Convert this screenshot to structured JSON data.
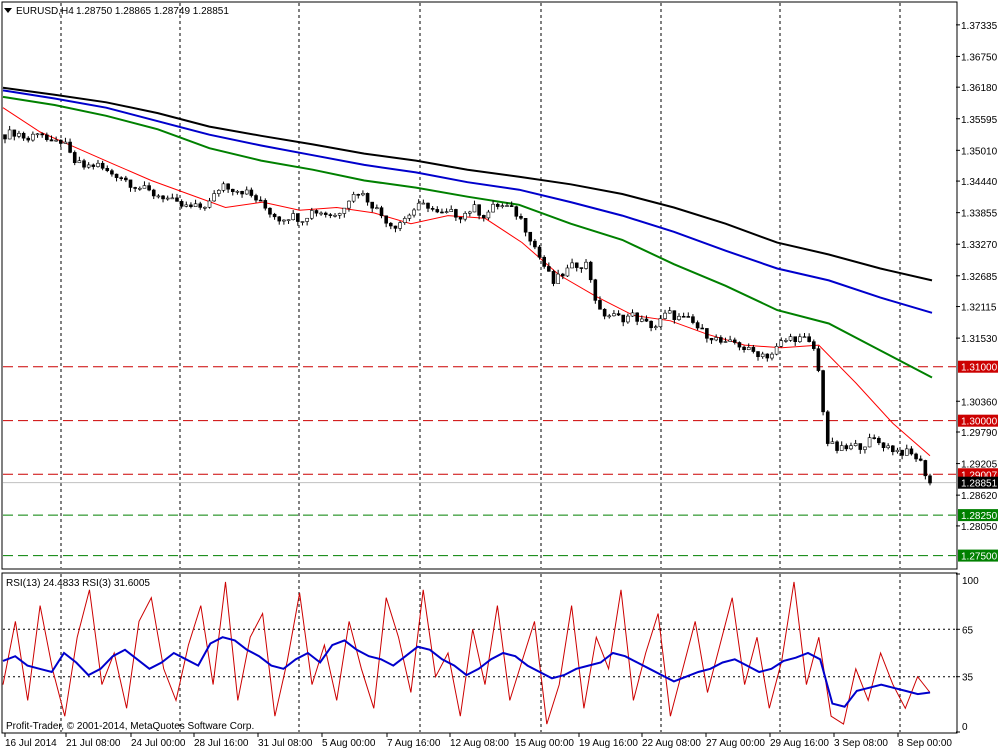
{
  "header": {
    "symbol_label": "EURUSD,H4",
    "ohlc": "1.28750 1.28865 1.28749 1.28851",
    "menu_icon": "triangle-down-icon"
  },
  "copyright": "Profit-Trader, © 2001-2014, MetaQuotes Software Corp.",
  "rsi_label": "RSI(13) 24.4833 RSI(3) 31.6005",
  "price_axis_ticks": [
    "1.37335",
    "1.36750",
    "1.36180",
    "1.35595",
    "1.35010",
    "1.34440",
    "1.33855",
    "1.33270",
    "1.32685",
    "1.32115",
    "1.31530",
    "1.30360",
    "1.29790",
    "1.29205",
    "1.28620",
    "1.28050"
  ],
  "price_levels": [
    {
      "label": "1.31000",
      "value": 1.31,
      "color": "#cc0000",
      "style": "dashed"
    },
    {
      "label": "1.30000",
      "value": 1.3,
      "color": "#cc0000",
      "style": "dashed"
    },
    {
      "label": "1.29007",
      "value": 1.29007,
      "color": "#cc0000",
      "style": "dashed"
    },
    {
      "label": "1.28851",
      "value": 1.28851,
      "color": "#000000",
      "style": "solid-current"
    },
    {
      "label": "1.28250",
      "value": 1.2825,
      "color": "#008000",
      "style": "dashed"
    },
    {
      "label": "1.27500",
      "value": 1.275,
      "color": "#008000",
      "style": "dashed"
    }
  ],
  "rsi_ticks": [
    "100",
    "65",
    "35",
    "0"
  ],
  "time_labels": [
    "16 Jul 2014",
    "21 Jul 08:00",
    "24 Jul 00:00",
    "28 Jul 16:00",
    "31 Jul 08:00",
    "5 Aug 00:00",
    "7 Aug 16:00",
    "12 Aug 08:00",
    "15 Aug 00:00",
    "19 Aug 16:00",
    "22 Aug 08:00",
    "27 Aug 00:00",
    "29 Aug 16:00",
    "3 Sep 08:00",
    "8 Sep 00:00"
  ],
  "colors": {
    "ma_black": "#000000",
    "ma_blue": "#0000cc",
    "ma_green": "#008000",
    "ma_red": "#ff0000",
    "rsi13": "#0000cc",
    "rsi3": "#cc0000",
    "grid": "#000000"
  },
  "chart_data": {
    "type": "candlestick",
    "symbol": "EURUSD",
    "timeframe": "H4",
    "ylim": [
      1.2727,
      1.3774
    ],
    "x_ticks": [
      "16 Jul 2014",
      "21 Jul 08:00",
      "24 Jul 00:00",
      "28 Jul 16:00",
      "31 Jul 08:00",
      "5 Aug 00:00",
      "7 Aug 16:00",
      "12 Aug 08:00",
      "15 Aug 00:00",
      "19 Aug 16:00",
      "22 Aug 08:00",
      "27 Aug 00:00",
      "29 Aug 16:00",
      "3 Sep 08:00",
      "8 Sep 00:00"
    ],
    "price_path": [
      1.353,
      1.3535,
      1.352,
      1.354,
      1.351,
      1.352,
      1.348,
      1.347,
      1.3475,
      1.346,
      1.3455,
      1.344,
      1.343,
      1.342,
      1.3415,
      1.34,
      1.3395,
      1.3395,
      1.3405,
      1.344,
      1.343,
      1.3425,
      1.341,
      1.339,
      1.3375,
      1.338,
      1.3375,
      1.339,
      1.3385,
      1.338,
      1.341,
      1.3425,
      1.3405,
      1.338,
      1.336,
      1.3375,
      1.3395,
      1.34,
      1.338,
      1.3385,
      1.338,
      1.3395,
      1.338,
      1.34,
      1.3395,
      1.338,
      1.334,
      1.3295,
      1.3255,
      1.3275,
      1.329,
      1.329,
      1.32,
      1.3195,
      1.319,
      1.3195,
      1.318,
      1.3175,
      1.32,
      1.319,
      1.3185,
      1.3165,
      1.3155,
      1.314,
      1.3145,
      1.313,
      1.3125,
      1.312,
      1.3145,
      1.3155,
      1.315,
      1.313,
      1.296,
      1.2945,
      1.295,
      1.2955,
      1.2965,
      1.2955,
      1.2945,
      1.294,
      1.293,
      1.2885
    ],
    "moving_averages": [
      {
        "color": "#000000",
        "values": [
          1.3617,
          1.3604,
          1.359,
          1.357,
          1.3545,
          1.3528,
          1.3512,
          1.3495,
          1.3482,
          1.3465,
          1.3452,
          1.3438,
          1.342,
          1.3395,
          1.3365,
          1.333,
          1.3308,
          1.3282,
          1.326
        ]
      },
      {
        "color": "#0000cc",
        "values": [
          1.3612,
          1.3597,
          1.358,
          1.3555,
          1.353,
          1.351,
          1.3492,
          1.3474,
          1.346,
          1.3442,
          1.3428,
          1.3405,
          1.338,
          1.335,
          1.3315,
          1.3282,
          1.326,
          1.3228,
          1.32
        ]
      },
      {
        "color": "#008000",
        "values": [
          1.36,
          1.3585,
          1.3565,
          1.354,
          1.3505,
          1.3482,
          1.3465,
          1.3445,
          1.3432,
          1.3415,
          1.34,
          1.3365,
          1.3335,
          1.329,
          1.325,
          1.3205,
          1.318,
          1.313,
          1.308
        ]
      },
      {
        "color": "#ff0000",
        "values": [
          1.358,
          1.3535,
          1.3505,
          1.3475,
          1.3445,
          1.342,
          1.3395,
          1.3405,
          1.339,
          1.3395,
          1.3385,
          1.3365,
          1.338,
          1.3375,
          1.333,
          1.327,
          1.323,
          1.3195,
          1.3185,
          1.316,
          1.314,
          1.3135,
          1.314,
          1.307,
          1.2995,
          1.2935
        ]
      }
    ],
    "rsi": {
      "ylim": [
        0,
        100
      ],
      "levels": [
        35,
        65
      ],
      "rsi13": [
        45,
        48,
        42,
        40,
        38,
        50,
        44,
        36,
        40,
        48,
        52,
        46,
        40,
        44,
        50,
        46,
        42,
        56,
        60,
        58,
        52,
        48,
        42,
        40,
        46,
        50,
        44,
        55,
        58,
        52,
        48,
        46,
        42,
        48,
        54,
        52,
        46,
        42,
        36,
        40,
        46,
        50,
        48,
        42,
        38,
        34,
        36,
        40,
        42,
        44,
        50,
        48,
        44,
        40,
        36,
        32,
        35,
        38,
        40,
        44,
        46,
        42,
        38,
        40,
        45,
        47,
        50,
        46,
        18,
        16,
        26,
        28,
        30,
        28,
        26,
        24,
        25
      ],
      "rsi3": [
        30,
        70,
        20,
        80,
        40,
        10,
        60,
        90,
        30,
        50,
        15,
        70,
        85,
        40,
        20,
        55,
        80,
        30,
        95,
        20,
        60,
        75,
        10,
        45,
        88,
        30,
        55,
        20,
        70,
        40,
        15,
        85,
        60,
        25,
        90,
        35,
        50,
        10,
        65,
        30,
        80,
        20,
        45,
        70,
        5,
        30,
        80,
        15,
        60,
        40,
        90,
        20,
        50,
        75,
        10,
        40,
        70,
        25,
        55,
        85,
        30,
        60,
        15,
        45,
        95,
        30,
        60,
        10,
        5,
        40,
        20,
        50,
        30,
        15,
        35,
        25
      ]
    }
  }
}
